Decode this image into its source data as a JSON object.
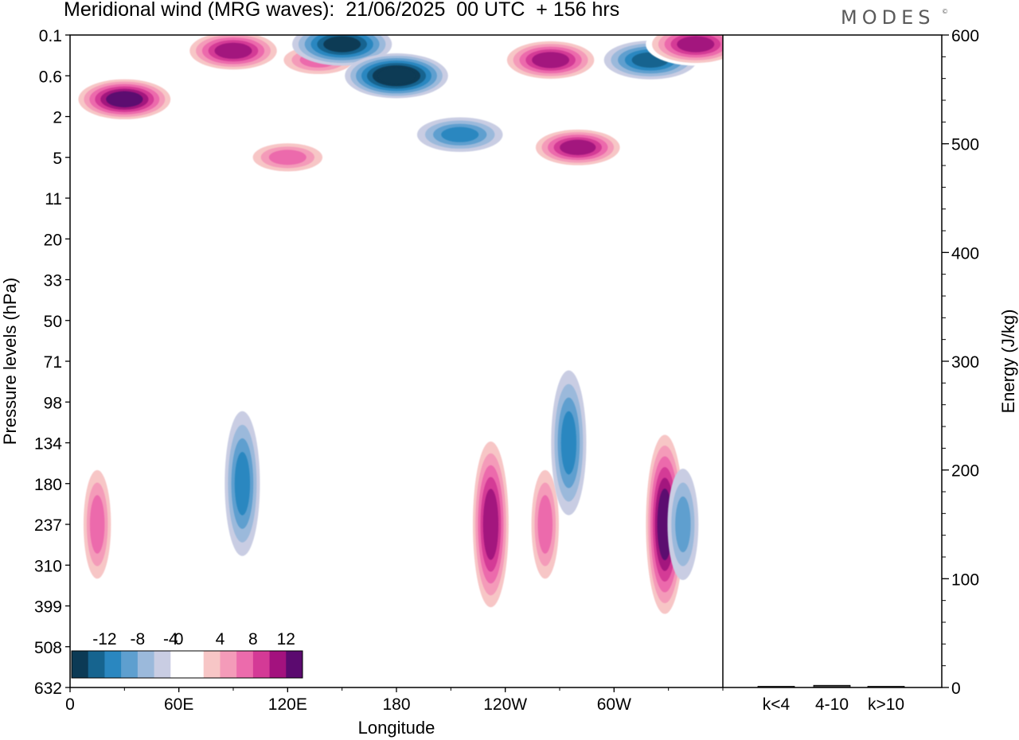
{
  "title": "Meridional wind (MRG waves):  21/06/2025  00 UTC  + 156 hrs",
  "logo": "MODES",
  "logo_mark": "©",
  "chart_data": [
    {
      "type": "heatmap",
      "title": "Meridional wind (MRG waves):  21/06/2025  00 UTC  + 156 hrs",
      "xlabel": "Longitude",
      "ylabel": "Pressure levels (hPa)",
      "x_ticks": [
        "0",
        "60E",
        "120E",
        "180",
        "120W",
        "60W"
      ],
      "x_tick_degrees": [
        0,
        60,
        120,
        180,
        240,
        300
      ],
      "xlim": [
        0,
        360
      ],
      "y_ticks": [
        "0.1",
        "0.6",
        "2",
        "5",
        "11",
        "20",
        "33",
        "50",
        "71",
        "98",
        "134",
        "180",
        "237",
        "310",
        "399",
        "508",
        "632"
      ],
      "y_scale": "categorical pressure levels, top to bottom",
      "colorbar": {
        "labels": [
          "-12",
          "-8",
          "-4",
          "0",
          "4",
          "8",
          "12"
        ],
        "levels": [
          -14,
          -12,
          -10,
          -8,
          -6,
          -4,
          -2,
          2,
          4,
          6,
          8,
          10,
          12,
          14
        ],
        "colors": [
          "#0c3a55",
          "#16648f",
          "#2a87c0",
          "#5e9fcf",
          "#9bb9db",
          "#c9cde3",
          "#ffffff",
          "#ffffff",
          "#f7c6c6",
          "#f49bb9",
          "#ec6bac",
          "#d43a96",
          "#a3127e",
          "#5b0a6f"
        ],
        "placement": "bottom-left inside plot"
      },
      "features": [
        {
          "lon": 30,
          "level": "1.2",
          "value": 14
        },
        {
          "lon": 90,
          "level": "0.2",
          "value": 13
        },
        {
          "lon": 137,
          "level": "0.3",
          "value": 9
        },
        {
          "lon": 120,
          "level": "5",
          "value": 9
        },
        {
          "lon": 150,
          "level": "0.15",
          "value": -13
        },
        {
          "lon": 180,
          "level": "0.6",
          "value": -14
        },
        {
          "lon": 215,
          "level": "3",
          "value": -9
        },
        {
          "lon": 265,
          "level": "0.3",
          "value": 13
        },
        {
          "lon": 280,
          "level": "4",
          "value": 12
        },
        {
          "lon": 320,
          "level": "0.3",
          "value": -11
        },
        {
          "lon": 345,
          "level": "0.15",
          "value": 13
        },
        {
          "lon": 15,
          "level": "237",
          "value": 8
        },
        {
          "lon": 95,
          "level": "180",
          "value": -9
        },
        {
          "lon": 232,
          "level": "237",
          "value": 13
        },
        {
          "lon": 262,
          "level": "237",
          "value": 8
        },
        {
          "lon": 275,
          "level": "134",
          "value": -9
        },
        {
          "lon": 328,
          "level": "237",
          "value": 14
        },
        {
          "lon": 338,
          "level": "237",
          "value": -6
        }
      ]
    },
    {
      "type": "bar",
      "ylabel": "Energy (J/kg)",
      "ylim": [
        0,
        600
      ],
      "y_ticks": [
        "0",
        "100",
        "200",
        "300",
        "400",
        "500",
        "600"
      ],
      "categories": [
        "k<4",
        "4-10",
        "k>10"
      ],
      "values": [
        0.5,
        2,
        0.5
      ]
    }
  ]
}
